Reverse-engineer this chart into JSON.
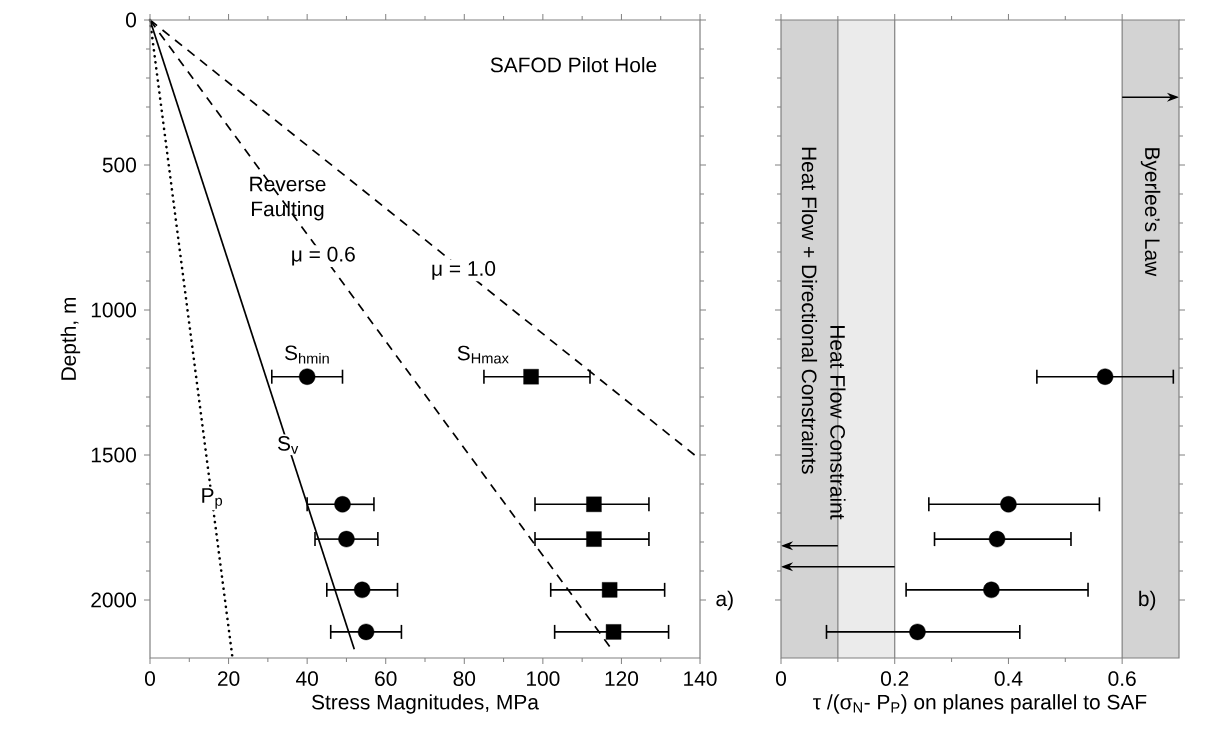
{
  "chart_data": [
    {
      "type": "line",
      "xlabel": "Stress Magnitudes, MPa",
      "ylabel": "Depth, m",
      "xlim": [
        0,
        140
      ],
      "ylim": [
        2200,
        0
      ],
      "xticks": [
        0,
        20,
        40,
        60,
        80,
        100,
        120,
        140
      ],
      "yticks": [
        0,
        500,
        1000,
        1500,
        2000
      ],
      "annotations": [
        "SAFOD Pilot Hole",
        "Reverse Faulting",
        "a)"
      ],
      "series": [
        {
          "name": "P$_{p}$",
          "type": "line",
          "line_style": "dotted",
          "color": "#000000",
          "x": [
            0,
            21
          ],
          "values": [
            0,
            2200
          ]
        },
        {
          "name": "S$_{v}$",
          "type": "line",
          "line_style": "solid",
          "color": "#000000",
          "x": [
            0,
            52
          ],
          "values": [
            0,
            2170
          ]
        },
        {
          "name": "μ = 0.6",
          "type": "line",
          "line_style": "dashed",
          "color": "#000000",
          "x": [
            0,
            117
          ],
          "values": [
            0,
            2160
          ]
        },
        {
          "name": "μ = 1.0",
          "type": "line",
          "line_style": "dashed",
          "color": "#000000",
          "x": [
            0,
            140
          ],
          "values": [
            0,
            1515
          ]
        },
        {
          "name": "S$_{hmin}$",
          "type": "scatter",
          "marker": "circle",
          "color": "#000000",
          "x": [
            40,
            49,
            50,
            54,
            55
          ],
          "values": [
            1230,
            1670,
            1790,
            1965,
            2110
          ],
          "xerrors": [
            [
              31,
              49
            ],
            [
              40,
              57
            ],
            [
              42,
              58
            ],
            [
              45,
              63
            ],
            [
              46,
              64
            ]
          ]
        },
        {
          "name": "S$_{Hmax}$",
          "type": "scatter",
          "marker": "square",
          "color": "#000000",
          "x": [
            97,
            113,
            113,
            117,
            118
          ],
          "values": [
            1230,
            1670,
            1790,
            1965,
            2110
          ],
          "xerrors": [
            [
              85,
              112
            ],
            [
              98,
              127
            ],
            [
              98,
              127
            ],
            [
              102,
              131
            ],
            [
              103,
              132
            ]
          ]
        }
      ]
    },
    {
      "type": "scatter",
      "marker": "circle",
      "xlabel": "τ /(σ$_{N}$- P$_{P}$) on planes parallel to SAF",
      "xlim": [
        0,
        0.7
      ],
      "ylim": [
        2200,
        0
      ],
      "xticks": [
        0,
        0.2,
        0.4,
        0.6
      ],
      "yticks": [
        0,
        500,
        1000,
        1500,
        2000
      ],
      "tick_labels": "x",
      "annotations": [
        "b)"
      ],
      "bands": [
        {
          "axis": "x",
          "from": 0,
          "to": 0.2,
          "label": "Heat Flow Constraint",
          "color": "#ebebeb"
        },
        {
          "axis": "x",
          "from": 0,
          "to": 0.1,
          "label": "Heat Flow + Directional Constraints",
          "color": "#d3d3d3"
        },
        {
          "axis": "x",
          "from": 0.6,
          "to": 0.7,
          "label": "Byerlee’s Law",
          "color": "#d3d3d3"
        }
      ],
      "series": [
        {
          "color": "#000000",
          "x": [
            0.57,
            0.4,
            0.38,
            0.37,
            0.24
          ],
          "values": [
            1230,
            1670,
            1790,
            1965,
            2110
          ],
          "xerrors": [
            [
              0.45,
              0.69
            ],
            [
              0.26,
              0.56
            ],
            [
              0.27,
              0.51
            ],
            [
              0.22,
              0.54
            ],
            [
              0.08,
              0.42
            ]
          ]
        }
      ]
    }
  ]
}
